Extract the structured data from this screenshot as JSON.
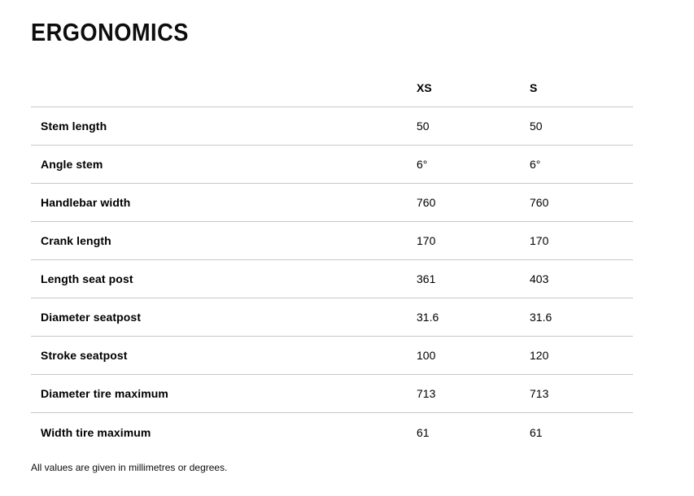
{
  "page": {
    "title": "ERGONOMICS",
    "footnote": "All values are given in millimetres or degrees."
  },
  "table": {
    "columns": [
      "XS",
      "S"
    ],
    "rows": [
      {
        "label": "Stem length",
        "values": [
          "50",
          "50"
        ]
      },
      {
        "label": "Angle stem",
        "values": [
          "6°",
          "6°"
        ]
      },
      {
        "label": "Handlebar width",
        "values": [
          "760",
          "760"
        ]
      },
      {
        "label": "Crank length",
        "values": [
          "170",
          "170"
        ]
      },
      {
        "label": "Length seat post",
        "values": [
          "361",
          "403"
        ]
      },
      {
        "label": "Diameter seatpost",
        "values": [
          "31.6",
          "31.6"
        ]
      },
      {
        "label": "Stroke seatpost",
        "values": [
          "100",
          "120"
        ]
      },
      {
        "label": "Diameter tire maximum",
        "values": [
          "713",
          "713"
        ]
      },
      {
        "label": "Width tire maximum",
        "values": [
          "61",
          "61"
        ]
      }
    ]
  },
  "colors": {
    "text": "#000000",
    "divider": "#c8c8c8",
    "background": "#ffffff"
  }
}
